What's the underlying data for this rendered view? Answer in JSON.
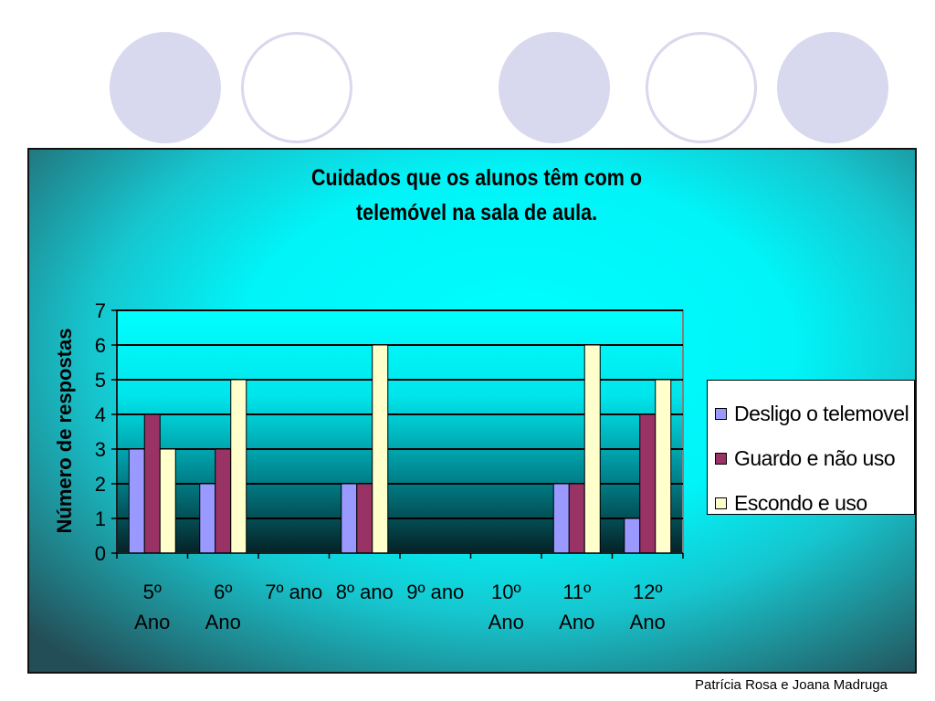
{
  "decor": {
    "circles": [
      "filled",
      "outline",
      "filled",
      "outline",
      "filled"
    ],
    "filled_color": "#d8d8ee"
  },
  "chart_data": {
    "type": "bar",
    "title_lines": [
      "Cuidados que os alunos têm com o",
      "telemóvel na sala de aula."
    ],
    "ylabel": "Número de respostas",
    "xlabel": "",
    "ylim": [
      0,
      7
    ],
    "yticks": [
      0,
      1,
      2,
      3,
      4,
      5,
      6,
      7
    ],
    "grid": true,
    "legend_position": "right",
    "categories": [
      [
        "5º",
        "Ano"
      ],
      [
        "6º",
        "Ano"
      ],
      [
        "7º ano"
      ],
      [
        "8º ano"
      ],
      [
        "9º ano"
      ],
      [
        "10º",
        "Ano"
      ],
      [
        "11º",
        "Ano"
      ],
      [
        "12º",
        "Ano"
      ]
    ],
    "series": [
      {
        "name": "Desligo o telemovel",
        "color": "#9999ff",
        "values": [
          3,
          2,
          0,
          2,
          0,
          0,
          2,
          1
        ]
      },
      {
        "name": "Guardo e não uso",
        "color": "#993366",
        "values": [
          4,
          3,
          0,
          2,
          0,
          0,
          2,
          4
        ]
      },
      {
        "name": "Escondo e uso",
        "color": "#ffffcc",
        "values": [
          3,
          5,
          0,
          6,
          0,
          0,
          6,
          5
        ]
      }
    ]
  },
  "footer": {
    "credit": "Patrícia Rosa e Joana Madruga"
  }
}
